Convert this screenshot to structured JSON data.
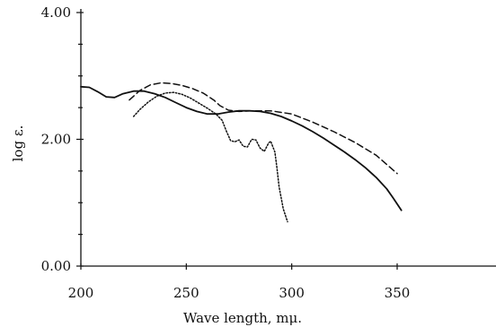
{
  "chart_data": {
    "type": "line",
    "title": "",
    "xlabel": "Wave length, mμ.",
    "ylabel": "log ε.",
    "xlim": [
      200,
      390
    ],
    "ylim": [
      0,
      4
    ],
    "x_ticks": [
      {
        "value": 200,
        "label": "200"
      },
      {
        "value": 250,
        "label": "250"
      },
      {
        "value": 300,
        "label": "300"
      },
      {
        "value": 350,
        "label": "350"
      }
    ],
    "y_ticks": [
      {
        "value": 0,
        "label": "0.00"
      },
      {
        "value": 2,
        "label": "2.00"
      },
      {
        "value": 4,
        "label": "4.00"
      }
    ],
    "grid": false,
    "legend": "none",
    "series": [
      {
        "style": "solid",
        "points": [
          [
            200,
            2.83
          ],
          [
            204,
            2.82
          ],
          [
            208,
            2.75
          ],
          [
            212,
            2.67
          ],
          [
            216,
            2.66
          ],
          [
            220,
            2.72
          ],
          [
            225,
            2.76
          ],
          [
            230,
            2.76
          ],
          [
            235,
            2.72
          ],
          [
            240,
            2.66
          ],
          [
            245,
            2.58
          ],
          [
            250,
            2.5
          ],
          [
            255,
            2.44
          ],
          [
            260,
            2.4
          ],
          [
            265,
            2.4
          ],
          [
            270,
            2.43
          ],
          [
            275,
            2.45
          ],
          [
            280,
            2.45
          ],
          [
            285,
            2.44
          ],
          [
            290,
            2.41
          ],
          [
            295,
            2.36
          ],
          [
            300,
            2.29
          ],
          [
            305,
            2.21
          ],
          [
            310,
            2.12
          ],
          [
            315,
            2.02
          ],
          [
            320,
            1.91
          ],
          [
            325,
            1.8
          ],
          [
            330,
            1.68
          ],
          [
            335,
            1.55
          ],
          [
            340,
            1.4
          ],
          [
            345,
            1.22
          ],
          [
            348,
            1.08
          ],
          [
            352,
            0.88
          ]
        ]
      },
      {
        "style": "dashed",
        "points": [
          [
            223,
            2.62
          ],
          [
            228,
            2.77
          ],
          [
            233,
            2.86
          ],
          [
            238,
            2.89
          ],
          [
            243,
            2.88
          ],
          [
            248,
            2.85
          ],
          [
            253,
            2.8
          ],
          [
            258,
            2.73
          ],
          [
            263,
            2.62
          ],
          [
            266,
            2.53
          ],
          [
            270,
            2.46
          ],
          [
            275,
            2.44
          ],
          [
            280,
            2.45
          ],
          [
            290,
            2.45
          ],
          [
            300,
            2.4
          ],
          [
            310,
            2.27
          ],
          [
            320,
            2.12
          ],
          [
            330,
            1.95
          ],
          [
            340,
            1.75
          ],
          [
            350,
            1.46
          ]
        ]
      },
      {
        "style": "dotted",
        "points": [
          [
            225,
            2.36
          ],
          [
            228,
            2.47
          ],
          [
            232,
            2.59
          ],
          [
            236,
            2.68
          ],
          [
            240,
            2.73
          ],
          [
            244,
            2.74
          ],
          [
            248,
            2.71
          ],
          [
            252,
            2.65
          ],
          [
            256,
            2.57
          ],
          [
            260,
            2.49
          ],
          [
            264,
            2.4
          ],
          [
            267,
            2.3
          ],
          [
            269,
            2.13
          ],
          [
            271,
            1.98
          ],
          [
            273,
            1.96
          ],
          [
            275,
            1.99
          ],
          [
            277,
            1.89
          ],
          [
            279,
            1.88
          ],
          [
            281,
            2.0
          ],
          [
            283,
            1.99
          ],
          [
            285,
            1.86
          ],
          [
            287,
            1.81
          ],
          [
            289,
            1.94
          ],
          [
            290,
            1.97
          ],
          [
            292,
            1.8
          ],
          [
            293,
            1.55
          ],
          [
            294,
            1.25
          ],
          [
            296,
            0.9
          ],
          [
            298,
            0.7
          ]
        ]
      }
    ]
  }
}
